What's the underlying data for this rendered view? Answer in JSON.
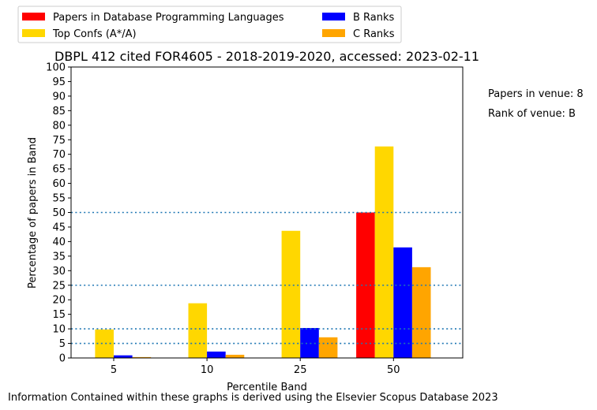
{
  "chart_data": {
    "type": "bar",
    "title": "DBPL 412 cited FOR4605 - 2018-2019-2020, accessed: 2023-02-11",
    "xlabel": "Percentile Band",
    "ylabel": "Percentage of papers in Band",
    "ylim": [
      0,
      100
    ],
    "yticks": [
      0,
      5,
      10,
      15,
      20,
      25,
      30,
      35,
      40,
      45,
      50,
      55,
      60,
      65,
      70,
      75,
      80,
      85,
      90,
      95,
      100
    ],
    "categories": [
      "5",
      "10",
      "25",
      "50"
    ],
    "series": [
      {
        "name": "Papers in Database Programming Languages",
        "color": "#ff0000",
        "values": [
          0,
          0,
          0,
          50
        ]
      },
      {
        "name": "Top Confs (A*/A)",
        "color": "#ffd700",
        "values": [
          9.8,
          18.8,
          43.7,
          72.7
        ]
      },
      {
        "name": "B Ranks",
        "color": "#0000ff",
        "values": [
          0.9,
          2.2,
          10.3,
          38
        ]
      },
      {
        "name": "C Ranks",
        "color": "#ffa500",
        "values": [
          0.3,
          1.1,
          7.1,
          31.2
        ]
      }
    ],
    "reference_lines": [
      5,
      10,
      25,
      50
    ],
    "reference_line_color": "#1f77b4",
    "legend_position": "top-left, outside plot",
    "grid": false
  },
  "annotations": {
    "papers_in_venue": "Papers in venue: 8",
    "rank_of_venue": "Rank of venue: B"
  },
  "footer": "Information Contained within these graphs is derived using the Elsevier Scopus Database 2023"
}
